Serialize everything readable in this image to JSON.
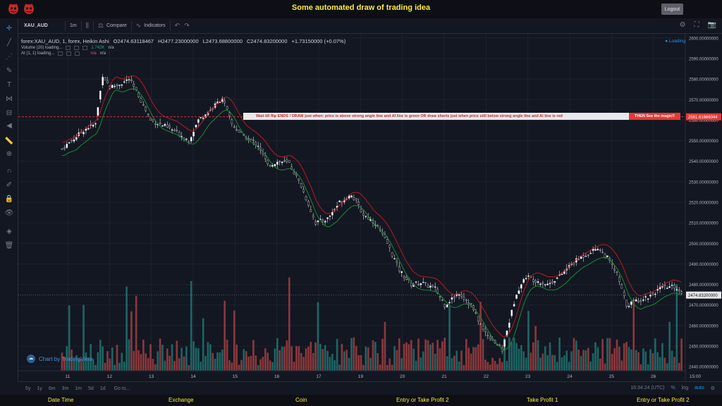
{
  "app": {
    "title": "Some automated draw of trading idea",
    "logout": "Logout"
  },
  "toolbar": {
    "symbol": "XAU_AUD",
    "interval": "1m",
    "compare": "Compare",
    "indicators": "Indicators"
  },
  "legend": {
    "name": "forex:XAU_AUD, 1, forex, Heikin Ashi",
    "open": "O2474.63118467",
    "high": "H2477.23000000",
    "low": "L2473.68800000",
    "close": "C2474.83200000",
    "change": "+1.73150000 (+0.07%)",
    "volume_label": "Volume (20) loading...",
    "volume_value": "1.742K",
    "volume_na": "n/a",
    "ai_label": "AI (1, 1) loading...",
    "ai_na1": "n/a",
    "ai_na2": "n/a",
    "loading": "Loading"
  },
  "banner": {
    "text": "Wait till flip ENDS  !   DRAW just when:  price is above strong angle line and AI line is green         OR         draw shorts just when price still below strong angle line and AI line is red",
    "tag": "THEN See the magic!!"
  },
  "watermark": "Chart by TradingView",
  "bottombar": {
    "ranges": [
      "5y",
      "1y",
      "6m",
      "3m",
      "1m",
      "5d",
      "1d"
    ],
    "goto": "Go to...",
    "time": "16:34:24 (UTC)",
    "pct": "%",
    "log": "log",
    "auto": "auto"
  },
  "footer": [
    "Date Time",
    "Exchange",
    "Coin",
    "Entry or Take Profit 2",
    "Take Profit 1",
    "Entry or Take Profit 2"
  ],
  "chart_data": {
    "type": "candlestick",
    "price_axis": [
      "2600.00000000",
      "2590.00000000",
      "2580.00000000",
      "2570.00000000",
      "2560.00000000",
      "2550.00000000",
      "2540.00000000",
      "2530.00000000",
      "2520.00000000",
      "2510.00000000",
      "2500.00000000",
      "2490.00000000",
      "2480.00000000",
      "2470.00000000",
      "2460.00000000",
      "2450.00000000",
      "2440.00000000"
    ],
    "ylim": [
      2438,
      2602
    ],
    "x_labels": [
      "11",
      "12",
      "13",
      "14",
      "15",
      "16",
      "17",
      "19",
      "20",
      "21",
      "22",
      "23",
      "24",
      "25",
      "26",
      "15:00"
    ],
    "last_price": "2474.83200000",
    "marker_price": "2561.61666044",
    "close_path": [
      [
        0,
        2546
      ],
      [
        10,
        2556
      ],
      [
        14,
        2558
      ],
      [
        17,
        2582
      ],
      [
        20,
        2576
      ],
      [
        25,
        2578
      ],
      [
        28,
        2580
      ],
      [
        32,
        2572
      ],
      [
        37,
        2560
      ],
      [
        43,
        2557
      ],
      [
        48,
        2554
      ],
      [
        53,
        2550
      ],
      [
        57,
        2560
      ],
      [
        63,
        2566
      ],
      [
        67,
        2571
      ],
      [
        71,
        2558
      ],
      [
        76,
        2552
      ],
      [
        82,
        2548
      ],
      [
        86,
        2538
      ],
      [
        91,
        2540
      ],
      [
        95,
        2539
      ],
      [
        100,
        2528
      ],
      [
        106,
        2510
      ],
      [
        111,
        2512
      ],
      [
        116,
        2520
      ],
      [
        121,
        2524
      ],
      [
        126,
        2514
      ],
      [
        131,
        2510
      ],
      [
        136,
        2500
      ],
      [
        141,
        2487
      ],
      [
        146,
        2480
      ],
      [
        150,
        2481
      ],
      [
        156,
        2478
      ],
      [
        160,
        2470
      ],
      [
        166,
        2476
      ],
      [
        171,
        2470
      ],
      [
        176,
        2458
      ],
      [
        181,
        2452
      ],
      [
        184,
        2448
      ],
      [
        187,
        2462
      ],
      [
        190,
        2476
      ],
      [
        194,
        2484
      ],
      [
        198,
        2482
      ],
      [
        203,
        2480
      ],
      [
        208,
        2484
      ],
      [
        213,
        2490
      ],
      [
        218,
        2494
      ],
      [
        224,
        2498
      ],
      [
        228,
        2493
      ],
      [
        232,
        2485
      ],
      [
        236,
        2470
      ],
      [
        240,
        2472
      ],
      [
        245,
        2474
      ],
      [
        250,
        2478
      ],
      [
        256,
        2479
      ],
      [
        259,
        2476
      ]
    ],
    "colors": {
      "up": "#ffffff",
      "down": "#111111",
      "ma_red": "#b71c1c",
      "ma_green": "#1b8a2e",
      "vol_up": "#26a69a",
      "vol_down": "#ef5350"
    }
  }
}
